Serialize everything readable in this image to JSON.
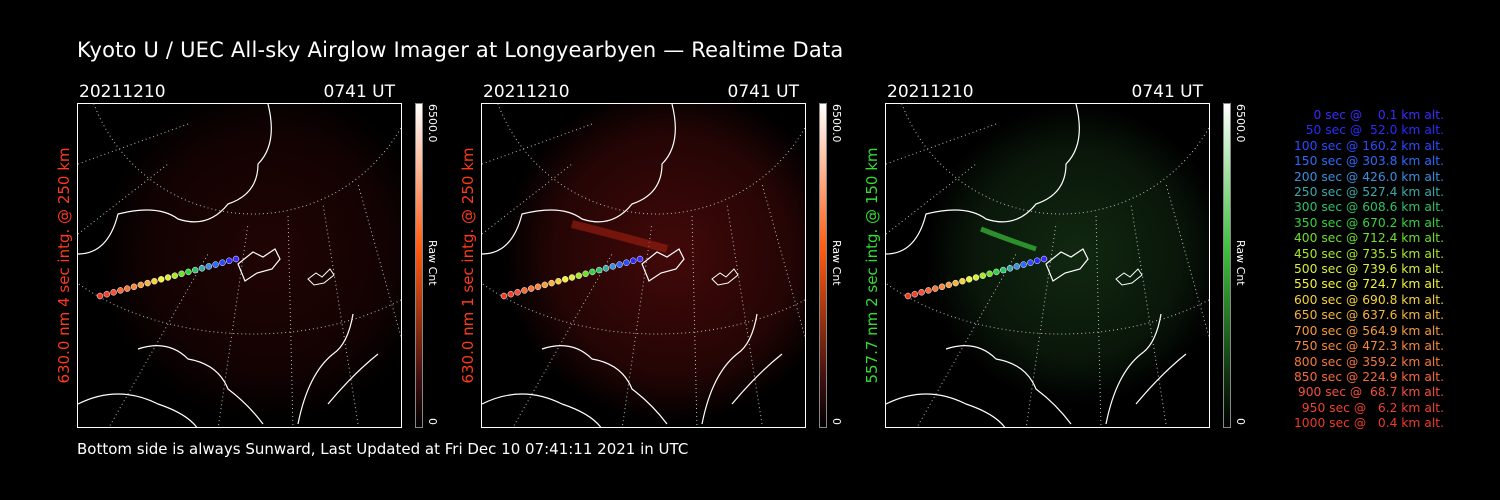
{
  "title": "Kyoto U / UEC All-sky Airglow Imager at Longyearbyen — Realtime Data",
  "footer": "Bottom side is always Sunward, Last Updated at Fri Dec 10 07:41:11 2021 in UTC",
  "panels": [
    {
      "date": "20211210",
      "time": "0741 UT",
      "ylabel": "630.0 nm 4 sec intg. @ 250 km",
      "color": "#ff3a1a",
      "cbar_max": "6500.0",
      "cbar_min": "0",
      "cbar_unit": "Raw Cnt",
      "cbar_top": "#ffffff",
      "cbar_mid": "#ff5a10",
      "glow": "#6a0c0c"
    },
    {
      "date": "20211210",
      "time": "0741 UT",
      "ylabel": "630.0 nm 1 sec intg. @ 250 km",
      "color": "#ff3a1a",
      "cbar_max": "6500.0",
      "cbar_min": "0",
      "cbar_unit": "Raw Cnt",
      "cbar_top": "#ffffff",
      "cbar_mid": "#ff5a10",
      "glow": "#7a1010"
    },
    {
      "date": "20211210",
      "time": "0741 UT",
      "ylabel": "557.7 nm 2 sec intg. @ 150 km",
      "color": "#33dd33",
      "cbar_max": "6500.0",
      "cbar_min": "0",
      "cbar_unit": "Raw Cnt",
      "cbar_top": "#ffffff",
      "cbar_mid": "#3ec03e",
      "glow": "#1f4a1f"
    }
  ],
  "legend": [
    {
      "text": "0 sec @    0.1 km alt.",
      "color": "#3b2bff"
    },
    {
      "text": "50 sec @  52.0 km alt.",
      "color": "#2b2bff"
    },
    {
      "text": "100 sec @ 160.2 km alt.",
      "color": "#2b4bff"
    },
    {
      "text": "150 sec @ 303.8 km alt.",
      "color": "#2b6bff"
    },
    {
      "text": "200 sec @ 426.0 km alt.",
      "color": "#3a8fe0"
    },
    {
      "text": "250 sec @ 527.4 km alt.",
      "color": "#3aa9a9"
    },
    {
      "text": "300 sec @ 608.6 km alt.",
      "color": "#2ec06a"
    },
    {
      "text": "350 sec @ 670.2 km alt.",
      "color": "#33d43a"
    },
    {
      "text": "400 sec @ 712.4 km alt.",
      "color": "#6ee02a"
    },
    {
      "text": "450 sec @ 735.5 km alt.",
      "color": "#a8e82a"
    },
    {
      "text": "500 sec @ 739.6 km alt.",
      "color": "#d8ee3a"
    },
    {
      "text": "550 sec @ 724.7 km alt.",
      "color": "#f2f23a"
    },
    {
      "text": "600 sec @ 690.8 km alt.",
      "color": "#f6d23a"
    },
    {
      "text": "650 sec @ 637.6 km alt.",
      "color": "#f6b43a"
    },
    {
      "text": "700 sec @ 564.9 km alt.",
      "color": "#f69a3a"
    },
    {
      "text": "750 sec @ 472.3 km alt.",
      "color": "#f6883a"
    },
    {
      "text": "800 sec @ 359.2 km alt.",
      "color": "#f6783a"
    },
    {
      "text": "850 sec @ 224.9 km alt.",
      "color": "#f66a3a"
    },
    {
      "text": "900 sec @  68.7 km alt.",
      "color": "#f4503a"
    },
    {
      "text": "950 sec @   6.2 km alt.",
      "color": "#f0402e"
    },
    {
      "text": "1000 sec @   0.4 km alt.",
      "color": "#ee3a28"
    }
  ]
}
